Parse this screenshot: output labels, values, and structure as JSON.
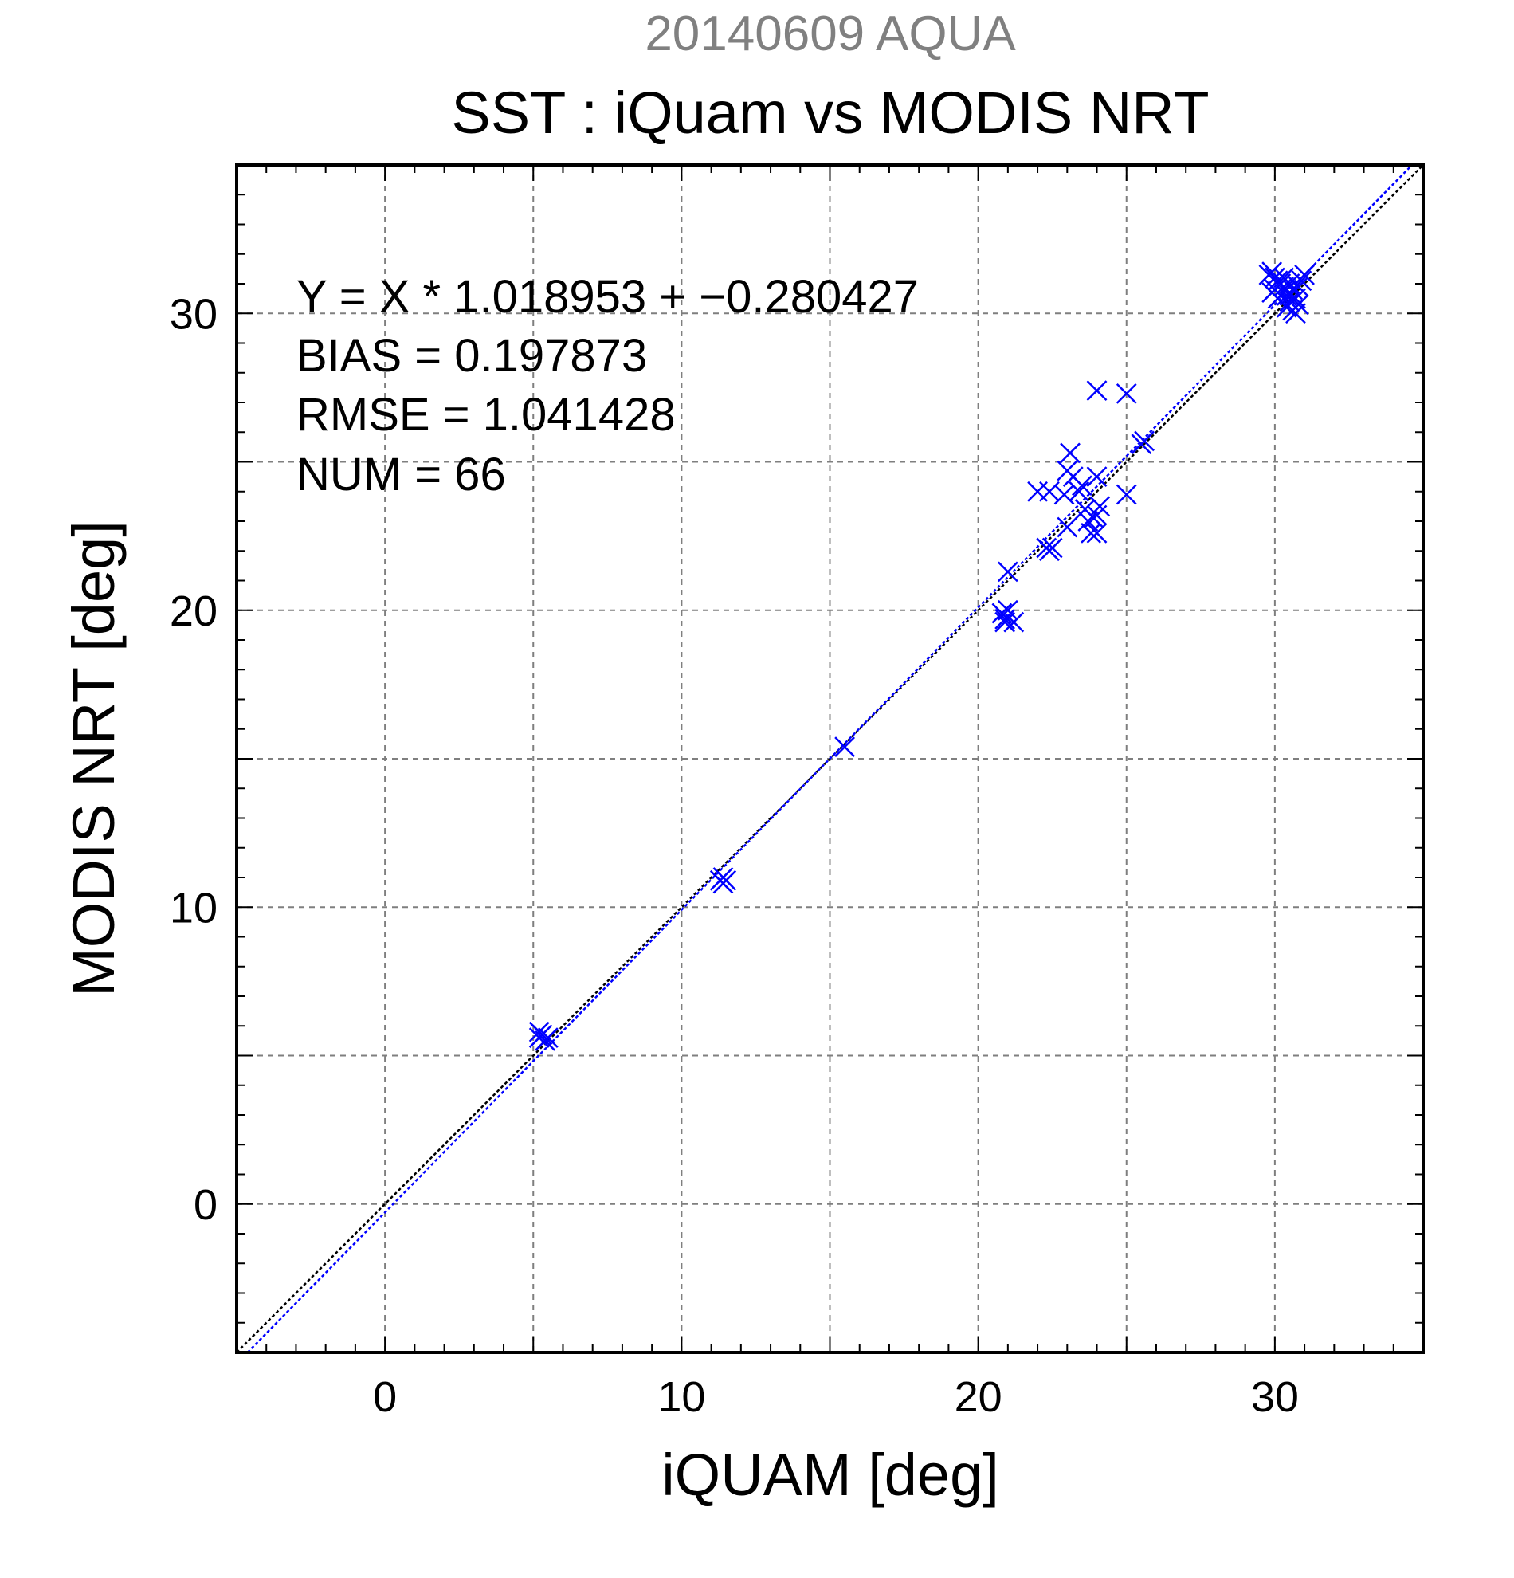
{
  "chart_data": {
    "type": "scatter",
    "supertitle": "20140609 AQUA",
    "title": "SST : iQuam vs MODIS NRT",
    "xlabel": "iQUAM [deg]",
    "ylabel": "MODIS NRT [deg]",
    "xlim": [
      -5,
      35
    ],
    "ylim": [
      -5,
      35
    ],
    "xticks": [
      0,
      10,
      20,
      30
    ],
    "yticks": [
      0,
      10,
      20,
      30
    ],
    "grid": true,
    "stats": [
      "Y = X * 1.018953 + −0.280427",
      "BIAS = 0.197873",
      "RMSE = 1.041428",
      "NUM = 66"
    ],
    "lines": [
      {
        "kind": "identity",
        "slope": 1,
        "intercept": 0,
        "color": "#000000"
      },
      {
        "kind": "fit",
        "slope": 1.018953,
        "intercept": -0.280427,
        "color": "#0000ff"
      }
    ],
    "colors": {
      "points": "#0000ff",
      "grid": "#7f7f7f",
      "supertitle": "#808080"
    },
    "points": [
      [
        5.2,
        5.6
      ],
      [
        5.3,
        5.7
      ],
      [
        5.4,
        5.5
      ],
      [
        5.5,
        5.6
      ],
      [
        5.2,
        5.8
      ],
      [
        11.3,
        10.9
      ],
      [
        11.4,
        11.0
      ],
      [
        11.5,
        10.9
      ],
      [
        11.4,
        10.8
      ],
      [
        15.5,
        15.4
      ],
      [
        20.8,
        19.9
      ],
      [
        20.9,
        19.6
      ],
      [
        21.0,
        20.0
      ],
      [
        21.2,
        19.6
      ],
      [
        20.9,
        19.7
      ],
      [
        21.0,
        21.3
      ],
      [
        22.3,
        22.1
      ],
      [
        22.4,
        22.0
      ],
      [
        22.5,
        22.1
      ],
      [
        22.0,
        24.0
      ],
      [
        22.4,
        24.0
      ],
      [
        22.9,
        23.9
      ],
      [
        23.0,
        22.8
      ],
      [
        23.0,
        24.7
      ],
      [
        23.1,
        25.3
      ],
      [
        23.2,
        24.5
      ],
      [
        23.4,
        24.0
      ],
      [
        23.5,
        24.2
      ],
      [
        23.6,
        23.4
      ],
      [
        23.7,
        23.0
      ],
      [
        23.8,
        22.6
      ],
      [
        23.9,
        23.1
      ],
      [
        24.0,
        22.6
      ],
      [
        24.0,
        23.2
      ],
      [
        24.1,
        23.5
      ],
      [
        24.0,
        24.5
      ],
      [
        24.0,
        27.4
      ],
      [
        25.0,
        23.9
      ],
      [
        25.0,
        27.3
      ],
      [
        25.5,
        25.6
      ],
      [
        25.6,
        25.7
      ],
      [
        29.8,
        31.3
      ],
      [
        29.9,
        31.4
      ],
      [
        30.0,
        31.2
      ],
      [
        30.1,
        31.1
      ],
      [
        30.0,
        30.8
      ],
      [
        30.2,
        30.6
      ],
      [
        30.3,
        31.2
      ],
      [
        30.3,
        30.9
      ],
      [
        30.4,
        30.8
      ],
      [
        30.4,
        30.6
      ],
      [
        30.5,
        31.0
      ],
      [
        30.5,
        30.4
      ],
      [
        30.6,
        30.1
      ],
      [
        30.7,
        30.5
      ],
      [
        30.7,
        30.0
      ],
      [
        30.8,
        30.3
      ],
      [
        30.8,
        30.9
      ],
      [
        30.9,
        31.1
      ],
      [
        31.0,
        31.3
      ],
      [
        30.2,
        31.0
      ],
      [
        30.6,
        30.8
      ],
      [
        30.4,
        30.2
      ],
      [
        30.1,
        30.5
      ],
      [
        29.9,
        30.7
      ],
      [
        30.5,
        30.6
      ]
    ]
  }
}
